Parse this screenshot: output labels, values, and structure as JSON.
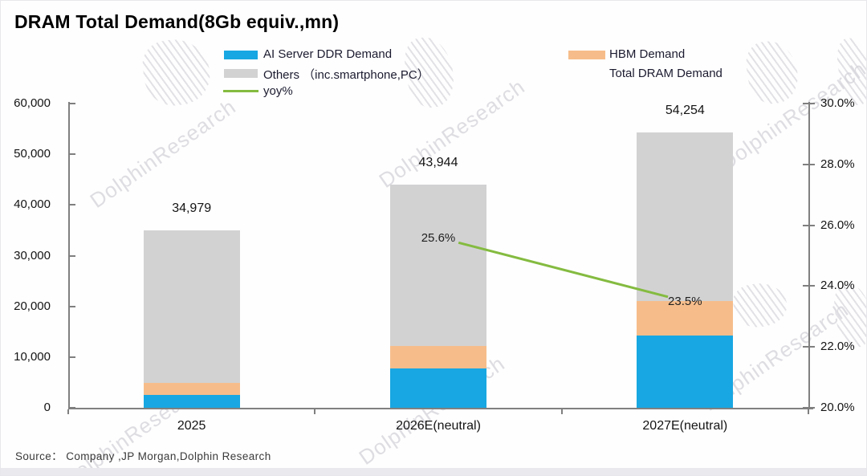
{
  "title": "DRAM Total Demand(8Gb equiv.,mn)",
  "source": "Source： Company ,JP Morgan,Dolphin Research",
  "watermark": "DolphinResearch",
  "legend": {
    "items": [
      {
        "label": "AI Server DDR Demand",
        "swatch": "bar",
        "color": "#18a7e2"
      },
      {
        "label": "HBM Demand",
        "swatch": "bar",
        "color": "#f6bd8b"
      },
      {
        "label": "Others （inc.smartphone,PC）",
        "swatch": "bar",
        "color": "#d2d2d3"
      },
      {
        "label": "Total DRAM Demand",
        "swatch": "none",
        "color": ""
      },
      {
        "label": "yoy%",
        "swatch": "line",
        "color": "#84bb40"
      }
    ]
  },
  "chart_data": {
    "type": "bar",
    "subtype": "stacked-bars-with-line",
    "title": "DRAM Total Demand(8Gb equiv.,mn)",
    "categories": [
      "2025",
      "2026E(neutral)",
      "2027E(neutral)"
    ],
    "series": [
      {
        "name": "AI Server DDR Demand",
        "type": "bar",
        "color": "#18a7e2",
        "values": [
          2600,
          7800,
          14300
        ]
      },
      {
        "name": "HBM Demand",
        "type": "bar",
        "color": "#f6bd8b",
        "values": [
          2300,
          4400,
          6700
        ]
      },
      {
        "name": "Others （inc.smartphone,PC）",
        "type": "bar",
        "color": "#d2d2d3",
        "values": [
          30079,
          31744,
          33254
        ]
      },
      {
        "name": "Total DRAM Demand",
        "type": "data-labels",
        "values": [
          34979,
          43944,
          54254
        ],
        "labels": [
          "34,979",
          "43,944",
          "54,254"
        ]
      },
      {
        "name": "yoy%",
        "type": "line",
        "color": "#84bb40",
        "values": [
          null,
          25.6,
          23.5
        ],
        "labels": [
          "",
          "25.6%",
          "23.5%"
        ]
      }
    ],
    "left_axis": {
      "min": 0,
      "max": 60000,
      "step": 10000,
      "ticks": [
        "0",
        "10,000",
        "20,000",
        "30,000",
        "40,000",
        "50,000",
        "60,000"
      ]
    },
    "right_axis": {
      "min": 20,
      "max": 30,
      "step": 2,
      "ticks": [
        "20.0%",
        "22.0%",
        "24.0%",
        "26.0%",
        "28.0%",
        "30.0%"
      ],
      "unit": "%"
    },
    "grid": false,
    "legend_position": "top"
  }
}
